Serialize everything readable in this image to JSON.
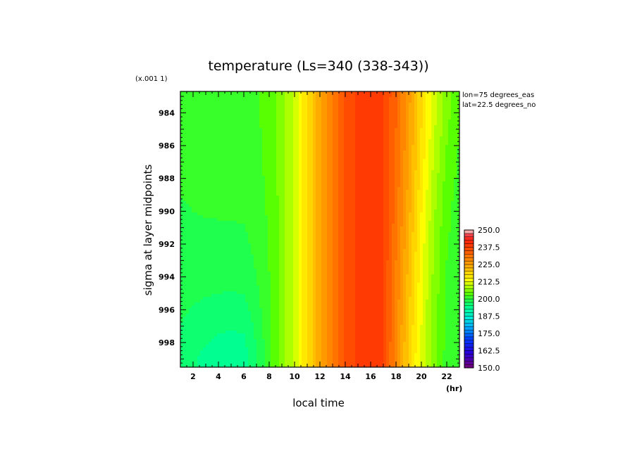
{
  "chart_data": {
    "type": "heatmap",
    "title": "temperature (Ls=340 (338-343))",
    "xlabel": "local time",
    "x_unit": "(hr)",
    "ylabel": "sigma at layer midpoints",
    "y_scale_note": "(x.001 1)",
    "annotations": [
      "lon=75 degrees_eas",
      "lat=22.5 degrees_no"
    ],
    "xlim": [
      1,
      23
    ],
    "ylim": [
      999.5,
      982.7
    ],
    "xticks": [
      "2",
      "4",
      "6",
      "8",
      "10",
      "12",
      "14",
      "16",
      "18",
      "20",
      "22"
    ],
    "yticks": [
      "984",
      "986",
      "988",
      "990",
      "992",
      "994",
      "996",
      "998"
    ],
    "color_levels": [
      150.0,
      152.5,
      155.0,
      157.5,
      160.0,
      162.5,
      165.0,
      167.5,
      170.0,
      172.5,
      175.0,
      177.5,
      180.0,
      182.5,
      185.0,
      187.5,
      190.0,
      192.5,
      195.0,
      197.5,
      200.0,
      202.5,
      205.0,
      207.5,
      210.0,
      212.5,
      215.0,
      217.5,
      220.0,
      222.5,
      225.0,
      227.5,
      230.0,
      232.5,
      235.0,
      237.5,
      240.0,
      242.5,
      245.0,
      247.5,
      250.0
    ],
    "colorbar_labels": [
      "250.0",
      "237.5",
      "225.0",
      "212.5",
      "200.0",
      "187.5",
      "175.0",
      "162.5",
      "150.0"
    ],
    "colors": {
      "green": "#55ff00",
      "light_green": "#33ff55",
      "yellow": "#ffff00",
      "orange": "#ffa500",
      "red": "#ff2a00"
    },
    "x": [
      1,
      2,
      3,
      4,
      5,
      6,
      7,
      8,
      9,
      10,
      11,
      12,
      13,
      14,
      15,
      16,
      17,
      18,
      19,
      20,
      21,
      22,
      23
    ],
    "y": [
      983,
      985,
      987,
      989,
      991,
      993,
      995,
      997,
      999
    ],
    "z": [
      [
        200.5,
        201.0,
        201.5,
        201.8,
        202.0,
        202.0,
        202.3,
        203.5,
        206.0,
        211.0,
        217.5,
        224.0,
        230.0,
        235.5,
        238.0,
        238.5,
        237.5,
        233.0,
        226.0,
        218.0,
        211.0,
        206.0,
        203.0
      ],
      [
        200.5,
        201.0,
        201.3,
        201.5,
        201.6,
        201.8,
        202.0,
        203.5,
        206.0,
        211.0,
        217.5,
        224.0,
        230.0,
        235.5,
        238.0,
        238.5,
        237.5,
        232.5,
        225.5,
        217.5,
        210.5,
        205.5,
        202.5
      ],
      [
        200.3,
        200.8,
        201.0,
        201.2,
        201.3,
        201.3,
        201.8,
        203.3,
        206.0,
        211.0,
        217.5,
        224.0,
        230.0,
        235.5,
        238.0,
        238.5,
        237.5,
        232.0,
        225.0,
        216.5,
        209.5,
        204.5,
        202.0
      ],
      [
        200.0,
        200.3,
        200.5,
        200.6,
        200.7,
        200.8,
        201.5,
        203.0,
        206.0,
        211.0,
        217.5,
        224.0,
        230.0,
        235.5,
        238.0,
        238.5,
        237.5,
        231.5,
        224.0,
        215.5,
        208.5,
        203.5,
        201.5
      ],
      [
        199.5,
        199.7,
        199.8,
        199.8,
        199.8,
        199.9,
        201.0,
        202.8,
        206.0,
        211.0,
        217.5,
        224.0,
        230.0,
        235.5,
        238.0,
        238.5,
        237.5,
        231.0,
        223.0,
        214.5,
        207.5,
        203.0,
        201.0
      ],
      [
        198.9,
        198.9,
        198.7,
        198.6,
        198.6,
        198.8,
        200.4,
        202.6,
        206.0,
        211.0,
        217.5,
        224.0,
        230.0,
        235.5,
        238.0,
        238.5,
        237.5,
        230.0,
        222.0,
        213.5,
        207.0,
        202.5,
        200.7
      ],
      [
        198.3,
        198.0,
        197.7,
        197.5,
        197.4,
        197.6,
        199.5,
        202.3,
        206.0,
        211.0,
        217.5,
        224.0,
        230.0,
        235.5,
        238.0,
        238.5,
        237.5,
        229.5,
        221.0,
        213.0,
        206.5,
        202.0,
        200.5
      ],
      [
        197.5,
        196.7,
        196.0,
        195.5,
        195.3,
        195.5,
        198.3,
        202.0,
        206.0,
        211.0,
        217.5,
        224.0,
        230.0,
        235.5,
        238.0,
        238.5,
        237.5,
        229.0,
        220.0,
        212.5,
        206.0,
        202.0,
        200.3
      ],
      [
        196.5,
        195.3,
        194.3,
        193.5,
        193.2,
        193.5,
        197.0,
        201.5,
        206.0,
        211.0,
        217.5,
        224.0,
        230.0,
        235.5,
        238.0,
        239.0,
        237.5,
        228.0,
        219.0,
        211.5,
        205.5,
        201.5,
        200.0
      ]
    ]
  }
}
